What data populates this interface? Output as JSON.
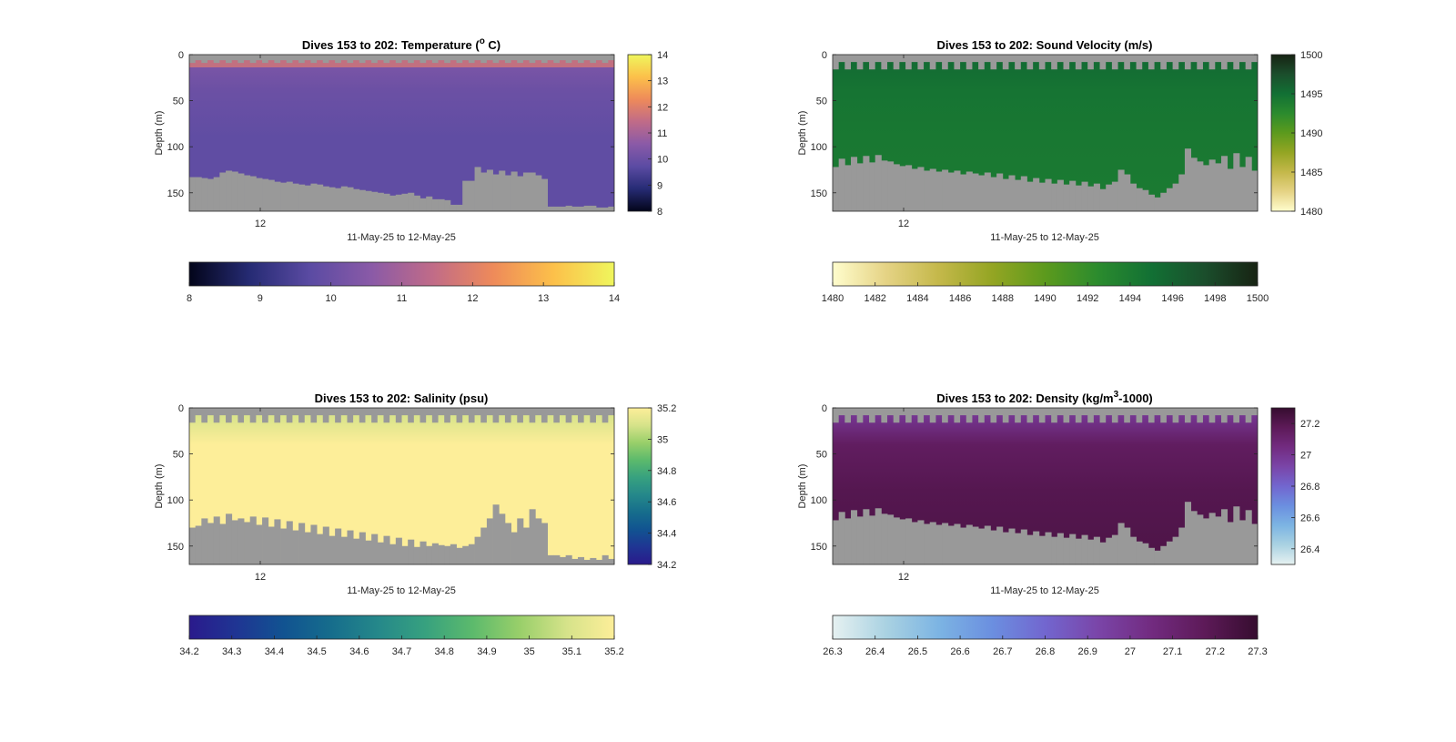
{
  "chart_data": [
    {
      "type": "heatmap",
      "title": "Dives 153 to 202: Temperature (° C)",
      "title_parts": [
        "Dives 153 to 202: Temperature (",
        "o",
        " C)"
      ],
      "xlabel": "11-May-25 to 12-May-25",
      "ylabel": "Depth (m)",
      "x_tick_labels": [
        "12"
      ],
      "y_ticks": [
        0,
        50,
        100,
        150
      ],
      "ylim": [
        0,
        170
      ],
      "y_reversed": true,
      "dives": [
        153,
        202
      ],
      "surface_gap_m": [
        6,
        9
      ],
      "fill_values": [
        10.3,
        10.0,
        9.8,
        9.8
      ],
      "fill_value_depths_m": [
        10,
        40,
        90,
        150
      ],
      "near_surface_value": 11.7,
      "bottom_depth_m": [
        133,
        133,
        134,
        135,
        133,
        128,
        126,
        127,
        129,
        131,
        132,
        134,
        135,
        136,
        138,
        139,
        138,
        140,
        141,
        142,
        140,
        141,
        143,
        144,
        145,
        143,
        144,
        146,
        147,
        148,
        149,
        150,
        151,
        153,
        152,
        151,
        150,
        153,
        156,
        154,
        157,
        157,
        158,
        163,
        163,
        137,
        137,
        122,
        128,
        125,
        130,
        126,
        131,
        127,
        132,
        128,
        128,
        131,
        135,
        165,
        165,
        165,
        164,
        165,
        165,
        164,
        164,
        166,
        166,
        165
      ],
      "colorbar": {
        "min": 8,
        "max": 14,
        "ticks": [
          8,
          9,
          10,
          11,
          12,
          13,
          14
        ],
        "cmap": "thermal",
        "ticks_v": [
          8,
          9,
          10,
          11,
          12,
          13,
          14
        ]
      },
      "colormap": [
        "#03051a",
        "#262b74",
        "#5b4ba3",
        "#8a5aa7",
        "#c06b88",
        "#ee8a5a",
        "#fcc04a",
        "#eff65d"
      ]
    },
    {
      "type": "heatmap",
      "title": "Dives 153 to 202: Sound Velocity (m/s)",
      "xlabel": "11-May-25 to 12-May-25",
      "ylabel": "Depth (m)",
      "x_tick_labels": [
        "12"
      ],
      "y_ticks": [
        0,
        50,
        100,
        150
      ],
      "ylim": [
        0,
        170
      ],
      "y_reversed": true,
      "dives": [
        153,
        202
      ],
      "surface_gap_m": [
        8,
        16
      ],
      "fill_values": [
        1495.3,
        1494.6,
        1494.3,
        1494.1
      ],
      "fill_value_depths_m": [
        10,
        40,
        90,
        150
      ],
      "bottom_depth_m": [
        122,
        113,
        120,
        111,
        118,
        110,
        117,
        109,
        115,
        116,
        119,
        121,
        120,
        124,
        122,
        126,
        124,
        127,
        125,
        128,
        126,
        130,
        127,
        129,
        131,
        128,
        133,
        129,
        135,
        131,
        136,
        132,
        138,
        134,
        139,
        135,
        140,
        136,
        141,
        137,
        142,
        138,
        143,
        140,
        146,
        141,
        138,
        125,
        130,
        140,
        145,
        147,
        152,
        155,
        150,
        145,
        140,
        130,
        102,
        112,
        116,
        120,
        114,
        118,
        110,
        124,
        107,
        122,
        111,
        126
      ],
      "colorbar": {
        "min": 1480,
        "max": 1500,
        "ticks": [
          1480,
          1482,
          1484,
          1486,
          1488,
          1490,
          1492,
          1494,
          1496,
          1498,
          1500
        ],
        "cmap": "speed",
        "ticks_v": [
          1480,
          1485,
          1490,
          1495,
          1500
        ]
      },
      "colormap": [
        "#fffdcd",
        "#e5d385",
        "#c4b84a",
        "#94a523",
        "#5c9a1d",
        "#2b8b2e",
        "#127034",
        "#1b4e2c",
        "#172313"
      ]
    },
    {
      "type": "heatmap",
      "title": "Dives 153 to 202: Salinity (psu)",
      "xlabel": "11-May-25 to 12-May-25",
      "ylabel": "Depth (m)",
      "x_tick_labels": [
        "12"
      ],
      "y_ticks": [
        0,
        50,
        100,
        150
      ],
      "ylim": [
        0,
        170
      ],
      "y_reversed": true,
      "dives": [
        153,
        202
      ],
      "surface_gap_m": [
        8,
        16
      ],
      "fill_values": [
        35.1,
        35.2,
        35.2,
        35.2
      ],
      "fill_value_depths_m": [
        10,
        40,
        90,
        150
      ],
      "bottom_depth_m": [
        130,
        128,
        120,
        125,
        118,
        126,
        115,
        122,
        120,
        124,
        118,
        127,
        119,
        129,
        121,
        131,
        123,
        133,
        125,
        135,
        127,
        137,
        129,
        139,
        131,
        140,
        133,
        142,
        135,
        144,
        137,
        146,
        139,
        148,
        141,
        150,
        143,
        151,
        145,
        150,
        147,
        149,
        150,
        148,
        152,
        150,
        148,
        140,
        130,
        120,
        105,
        115,
        125,
        135,
        120,
        130,
        110,
        120,
        125,
        160,
        160,
        162,
        160,
        164,
        162,
        165,
        163,
        165,
        160,
        164
      ],
      "colorbar": {
        "min": 34.2,
        "max": 35.2,
        "ticks": [
          34.2,
          34.3,
          34.4,
          34.5,
          34.6,
          34.7,
          34.8,
          34.9,
          35,
          35.1,
          35.2
        ],
        "cmap": "haline",
        "ticks_v": [
          34.2,
          34.4,
          34.6,
          34.8,
          35,
          35.2
        ]
      },
      "colormap": [
        "#2a1a8c",
        "#1f3593",
        "#115391",
        "#166d8c",
        "#25888a",
        "#37a17f",
        "#5cba6c",
        "#99cf6a",
        "#d6e38a",
        "#fdee99"
      ]
    },
    {
      "type": "heatmap",
      "title": "Dives 153 to 202: Density (kg/m³-1000)",
      "title_parts": [
        "Dives 153 to 202: Density (kg/m",
        "3",
        "-1000)"
      ],
      "xlabel": "11-May-25 to 12-May-25",
      "ylabel": "Depth (m)",
      "x_tick_labels": [
        "12"
      ],
      "y_ticks": [
        0,
        50,
        100,
        150
      ],
      "ylim": [
        0,
        170
      ],
      "y_reversed": true,
      "dives": [
        153,
        202
      ],
      "surface_gap_m": [
        8,
        16
      ],
      "fill_values": [
        27.0,
        27.15,
        27.2,
        27.22
      ],
      "fill_value_depths_m": [
        10,
        40,
        90,
        150
      ],
      "bottom_depth_m": [
        122,
        113,
        120,
        111,
        118,
        110,
        117,
        109,
        115,
        116,
        119,
        121,
        120,
        124,
        122,
        126,
        124,
        127,
        125,
        128,
        126,
        130,
        127,
        129,
        131,
        128,
        133,
        129,
        135,
        131,
        136,
        132,
        138,
        134,
        139,
        135,
        140,
        136,
        141,
        137,
        142,
        138,
        143,
        140,
        146,
        141,
        138,
        125,
        130,
        140,
        145,
        147,
        152,
        155,
        150,
        145,
        140,
        130,
        102,
        112,
        116,
        120,
        114,
        118,
        110,
        124,
        107,
        122,
        111,
        126
      ],
      "colorbar": {
        "min": 26.3,
        "max": 27.3,
        "ticks": [
          26.3,
          26.4,
          26.5,
          26.6,
          26.7,
          26.8,
          26.9,
          27,
          27.1,
          27.2,
          27.3
        ],
        "cmap": "dense",
        "ticks_v": [
          26.4,
          26.6,
          26.8,
          27,
          27.2
        ]
      },
      "colormap": [
        "#e6f1f1",
        "#aad2e2",
        "#7cb4e3",
        "#6b8fe0",
        "#7266cf",
        "#7a45a8",
        "#722b80",
        "#5d1a58",
        "#360d2f"
      ]
    }
  ]
}
